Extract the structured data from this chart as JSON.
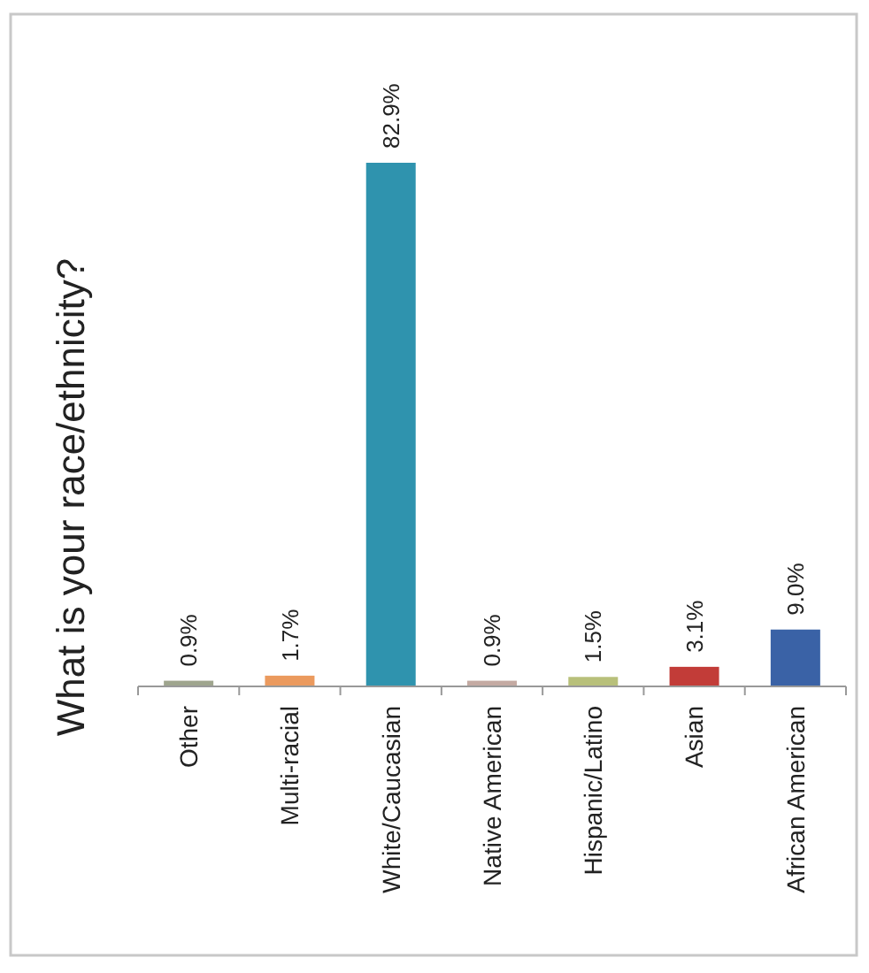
{
  "chart_data": {
    "type": "bar",
    "title": "What is your race/ethnicity?",
    "categories": [
      "Other",
      "Multi-racial",
      "White/Caucasian",
      "Native American",
      "Hispanic/Latino",
      "Asian",
      "African American"
    ],
    "values": [
      0.9,
      1.7,
      82.9,
      0.9,
      1.5,
      3.1,
      9.0
    ],
    "colors": [
      "#9fa58e",
      "#eb9a5e",
      "#2f93ae",
      "#c4aaa2",
      "#b8c07a",
      "#c23c38",
      "#3a62a6"
    ],
    "value_labels": [
      "0.9%",
      "1.7%",
      "82.9%",
      "0.9%",
      "1.5%",
      "3.1%",
      "9.0%"
    ]
  }
}
